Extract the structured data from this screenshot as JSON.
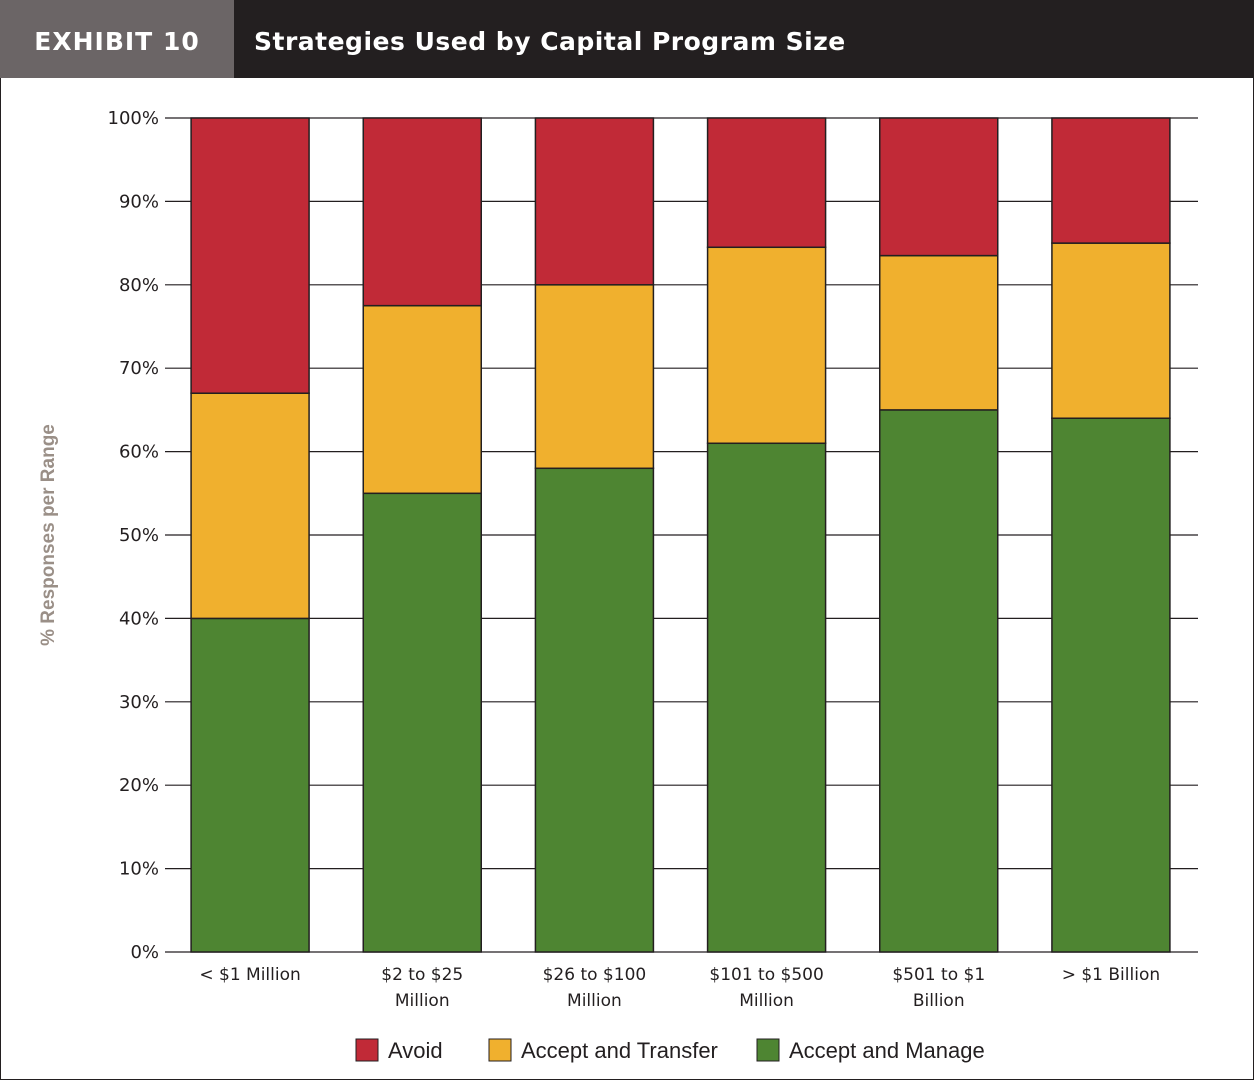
{
  "header": {
    "exhibit_label": "EXHIBIT 10",
    "title": "Strategies Used by Capital Program Size"
  },
  "chart_data": {
    "type": "bar",
    "stacked": true,
    "title": "Strategies Used by Capital Program Size",
    "xlabel": "",
    "ylabel": "% Responses per Range",
    "ylim": [
      0,
      100
    ],
    "yticks": [
      "0%",
      "10%",
      "20%",
      "30%",
      "40%",
      "50%",
      "60%",
      "70%",
      "80%",
      "90%",
      "100%"
    ],
    "grid": true,
    "legend_position": "bottom",
    "categories": [
      [
        "< $1 Million"
      ],
      [
        "$2 to $25",
        "Million"
      ],
      [
        "$26 to $100",
        "Million"
      ],
      [
        "$101 to $500",
        "Million"
      ],
      [
        "$501 to $1",
        "Billion"
      ],
      [
        "> $1 Billion"
      ]
    ],
    "series": [
      {
        "name": "Accept and Manage",
        "color": "#4e8532",
        "values": [
          40,
          55,
          58,
          61,
          65,
          64
        ]
      },
      {
        "name": "Accept and Transfer",
        "color": "#f0b02e",
        "values": [
          27,
          22.5,
          22,
          23.5,
          18.5,
          21
        ]
      },
      {
        "name": "Avoid",
        "color": "#c12a37",
        "values": [
          33,
          22.5,
          20,
          15.5,
          16.5,
          15
        ]
      }
    ],
    "legend_order": [
      "Avoid",
      "Accept and Transfer",
      "Accept and Manage"
    ]
  }
}
